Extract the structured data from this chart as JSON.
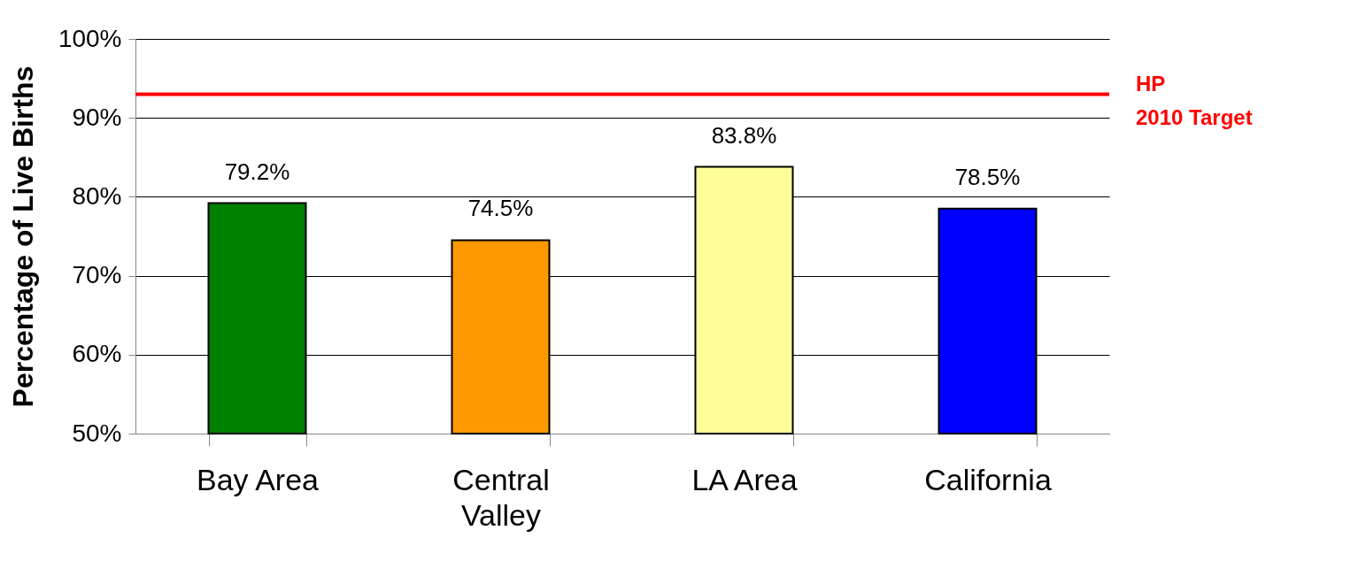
{
  "chart_data": {
    "type": "bar",
    "ylabel": "Percentage of Live Births",
    "categories": [
      "Bay Area",
      "Central Valley",
      "LA Area",
      "California"
    ],
    "values": [
      79.2,
      74.5,
      83.8,
      78.5
    ],
    "colors": [
      "#008000",
      "#ff9900",
      "#ffff99",
      "#0000ff"
    ],
    "value_labels": [
      "79.2%",
      "74.5%",
      "83.8%",
      "78.5%"
    ],
    "ylim": [
      50,
      100
    ],
    "yticks": [
      {
        "value": 50,
        "label": "50%"
      },
      {
        "value": 60,
        "label": "60%"
      },
      {
        "value": 70,
        "label": "70%"
      },
      {
        "value": 80,
        "label": "80%"
      },
      {
        "value": 90,
        "label": "90%"
      },
      {
        "value": 100,
        "label": "100%"
      }
    ],
    "grid": "y",
    "ref_lines": [
      {
        "axis": "y",
        "value": 93,
        "label": "HP\n2010 Target",
        "color": "#ff0000"
      }
    ]
  }
}
